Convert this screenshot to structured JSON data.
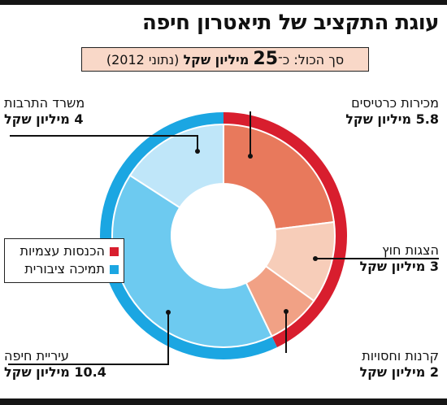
{
  "title": "עוגת התקציב של תיאטרון חיפה",
  "total": {
    "prefix": "סך הכול: כ־",
    "value": "25",
    "unit": "מיליון שקל",
    "suffix": "(נתוני 2012)"
  },
  "legend": [
    {
      "label": "הכנסות עצמיות",
      "color": "#d81e2e"
    },
    {
      "label": "תמיכה ציבורית",
      "color": "#1ba6e2"
    }
  ],
  "chart_data": {
    "type": "pie",
    "title": "עוגת התקציב של תיאטרון חיפה",
    "unit": "מיליון שקל",
    "total": 25,
    "year": 2012,
    "slices": [
      {
        "label": "מכירות כרטיסים",
        "value": 5.8,
        "value_label": "5.8 מיליון שקל",
        "group": "הכנסות עצמיות",
        "color": "#e8795c"
      },
      {
        "label": "הצגות חוץ",
        "value": 3,
        "value_label": "3 מיליון שקל",
        "group": "הכנסות עצמיות",
        "color": "#f7cdb9"
      },
      {
        "label": "קרנות וחסויות",
        "value": 2,
        "value_label": "2 מיליון שקל",
        "group": "הכנסות עצמיות",
        "color": "#f1a185"
      },
      {
        "label": "עיריית חיפה",
        "value": 10.4,
        "value_label": "10.4 מיליון שקל",
        "group": "תמיכה ציבורית",
        "color": "#6dcaf0"
      },
      {
        "label": "משרד התרבות",
        "value": 4,
        "value_label": "4 מיליון שקל",
        "group": "תמיכה ציבורית",
        "color": "#bfe6f9"
      }
    ],
    "groups": [
      {
        "name": "הכנסות עצמיות",
        "value": 10.8,
        "color": "#d81e2e"
      },
      {
        "name": "תמיכה ציבורית",
        "value": 14.4,
        "color": "#1ba6e2"
      }
    ]
  }
}
